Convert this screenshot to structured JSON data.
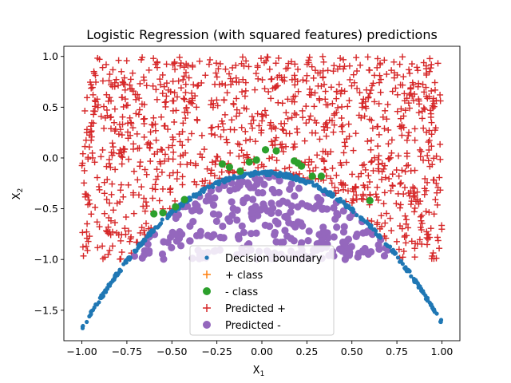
{
  "chart_data": {
    "type": "scatter",
    "title": "Logistic Regression (with squared features) predictions",
    "xlabel": "X",
    "xlabel_sub": "1",
    "ylabel": "X",
    "ylabel_sub": "2",
    "xlim": [
      -1.1,
      1.1
    ],
    "ylim": [
      -1.8,
      1.1
    ],
    "x_ticks": [
      -1.0,
      -0.75,
      -0.5,
      -0.25,
      0.0,
      0.25,
      0.5,
      0.75,
      1.0
    ],
    "x_tick_labels": [
      "−1.00",
      "−0.75",
      "−0.50",
      "−0.25",
      "0.00",
      "0.25",
      "0.50",
      "0.75",
      "1.00"
    ],
    "y_ticks": [
      -1.5,
      -1.0,
      -0.5,
      0.0,
      0.5,
      1.0
    ],
    "y_tick_labels": [
      "−1.5",
      "−1.0",
      "−0.5",
      "0.0",
      "0.5",
      "1.0"
    ],
    "grid": false,
    "legend_position": "lower-center",
    "series": [
      {
        "name": "Decision boundary",
        "marker": "dot",
        "color": "#1f77b4",
        "description_of_shape": "parabola",
        "equation_coeffs": {
          "a": -1.5,
          "b": 0.03,
          "c": -0.15
        }
      },
      {
        "name": "+ class",
        "marker": "plus",
        "color": "#ff7f0e"
      },
      {
        "name": "- class",
        "marker": "circle",
        "color": "#2ca02c",
        "points": [
          [
            -0.55,
            -0.54
          ],
          [
            -0.48,
            -0.48
          ],
          [
            -0.43,
            -0.41
          ],
          [
            -0.22,
            -0.06
          ],
          [
            -0.18,
            -0.09
          ],
          [
            -0.12,
            -0.13
          ],
          [
            -0.07,
            -0.04
          ],
          [
            -0.03,
            -0.02
          ],
          [
            0.02,
            0.08
          ],
          [
            0.08,
            0.07
          ],
          [
            0.18,
            -0.03
          ],
          [
            0.2,
            -0.05
          ],
          [
            0.22,
            -0.08
          ],
          [
            0.28,
            -0.18
          ],
          [
            0.33,
            -0.18
          ],
          [
            0.6,
            -0.42
          ],
          [
            -0.6,
            -0.55
          ]
        ]
      },
      {
        "name": "Predicted +",
        "marker": "plus",
        "color": "#d62728"
      },
      {
        "name": "Predicted -",
        "marker": "circle",
        "color": "#9467bd"
      }
    ]
  }
}
